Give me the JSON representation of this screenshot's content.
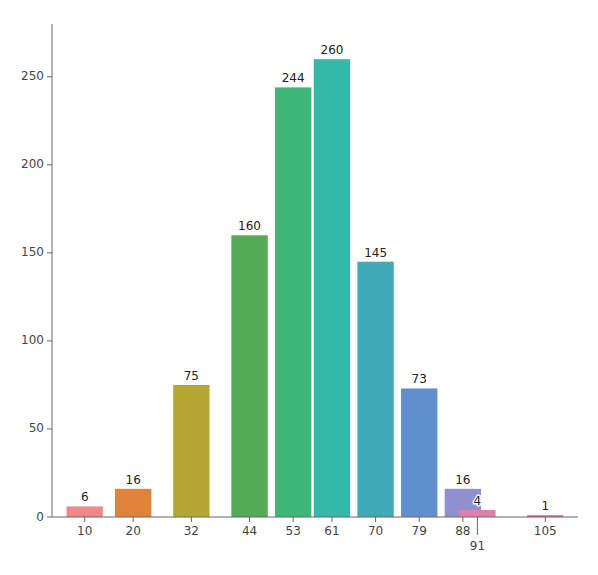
{
  "chart_data": {
    "type": "bar",
    "x": [
      10,
      20,
      32,
      44,
      53,
      61,
      70,
      79,
      88,
      91,
      105
    ],
    "values": [
      6,
      16,
      75,
      160,
      244,
      260,
      145,
      73,
      16,
      4,
      1
    ],
    "colors": [
      "#f08888",
      "#e0823a",
      "#b5a832",
      "#55aa55",
      "#3cb878",
      "#35b8a8",
      "#40aab8",
      "#6090cc",
      "#9090d0",
      "#e080a8",
      "#e06878"
    ],
    "xlim": [
      3.25,
      111.75
    ],
    "xticks": [
      10,
      20,
      32,
      44,
      53,
      61,
      70,
      79,
      88,
      91,
      105
    ],
    "ylim": [
      0,
      280
    ],
    "yticks": [
      0,
      50,
      100,
      150,
      200,
      250
    ],
    "data_labels": true,
    "grid": false
  }
}
